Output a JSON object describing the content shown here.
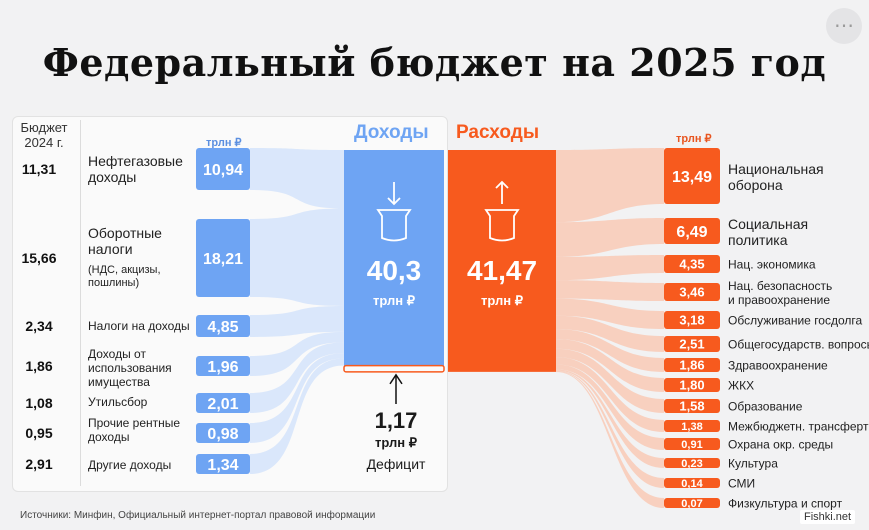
{
  "title": "Федеральный бюджет на 2025 год",
  "prev_year_label": "Бюджет 2024 г.",
  "income_header": "Доходы",
  "expense_header": "Расходы",
  "unit_small": "трлн ₽",
  "income_total": "40,3",
  "expense_total": "41,47",
  "total_unit": "трлн ₽",
  "deficit": {
    "value": "1,17",
    "unit": "трлн ₽",
    "label": "Дефицит"
  },
  "sources": "Источники: Минфин, Официальный интернет-портал правовой информации",
  "watermark": "Fishki.net",
  "colors": {
    "income": "#6ea4f3",
    "income_light": "#cfe0fb",
    "expense": "#f75a1e",
    "expense_light": "#fbc2a8"
  },
  "chart_data": [
    {
      "type": "bar",
      "title": "Доходы",
      "unit": "трлн ₽",
      "total": 40.3,
      "categories": [
        {
          "label": "Нефтегазовые доходы",
          "value": 10.94,
          "value_label": "10,94",
          "prev_2024": 11.31,
          "prev_label": "11,31"
        },
        {
          "label": "Оборотные налоги",
          "sublabel": "(НДС, акцизы, пошлины)",
          "value": 18.21,
          "value_label": "18,21",
          "prev_2024": 15.66,
          "prev_label": "15,66"
        },
        {
          "label": "Налоги на доходы",
          "value": 4.85,
          "value_label": "4,85",
          "prev_2024": 2.34,
          "prev_label": "2,34"
        },
        {
          "label": "Доходы от использования имущества",
          "value": 1.96,
          "value_label": "1,96",
          "prev_2024": 1.86,
          "prev_label": "1,86"
        },
        {
          "label": "Утильсбор",
          "value": 2.01,
          "value_label": "2,01",
          "prev_2024": 1.08,
          "prev_label": "1,08"
        },
        {
          "label": "Прочие рентные доходы",
          "value": 0.98,
          "value_label": "0,98",
          "prev_2024": 0.95,
          "prev_label": "0,95"
        },
        {
          "label": "Другие доходы",
          "value": 1.34,
          "value_label": "1,34",
          "prev_2024": 2.91,
          "prev_label": "2,91"
        }
      ]
    },
    {
      "type": "bar",
      "title": "Расходы",
      "unit": "трлн ₽",
      "total": 41.47,
      "deficit": 1.17,
      "categories": [
        {
          "label": "Национальная оборона",
          "value": 13.49,
          "value_label": "13,49"
        },
        {
          "label": "Социальная политика",
          "value": 6.49,
          "value_label": "6,49"
        },
        {
          "label": "Нац. экономика",
          "value": 4.35,
          "value_label": "4,35"
        },
        {
          "label": "Нац. безопасность и правоохранение",
          "value": 3.46,
          "value_label": "3,46"
        },
        {
          "label": "Обслуживание госдолга",
          "value": 3.18,
          "value_label": "3,18"
        },
        {
          "label": "Общегосударств. вопросы",
          "value": 2.51,
          "value_label": "2,51"
        },
        {
          "label": "Здравоохранение",
          "value": 1.86,
          "value_label": "1,86"
        },
        {
          "label": "ЖКХ",
          "value": 1.8,
          "value_label": "1,80"
        },
        {
          "label": "Образование",
          "value": 1.58,
          "value_label": "1,58"
        },
        {
          "label": "Межбюджетн. трансферты",
          "value": 1.38,
          "value_label": "1,38"
        },
        {
          "label": "Охрана окр. среды",
          "value": 0.91,
          "value_label": "0,91"
        },
        {
          "label": "Культура",
          "value": 0.23,
          "value_label": "0,23"
        },
        {
          "label": "СМИ",
          "value": 0.14,
          "value_label": "0,14"
        },
        {
          "label": "Физкультура и спорт",
          "value": 0.07,
          "value_label": "0,07"
        }
      ]
    }
  ]
}
